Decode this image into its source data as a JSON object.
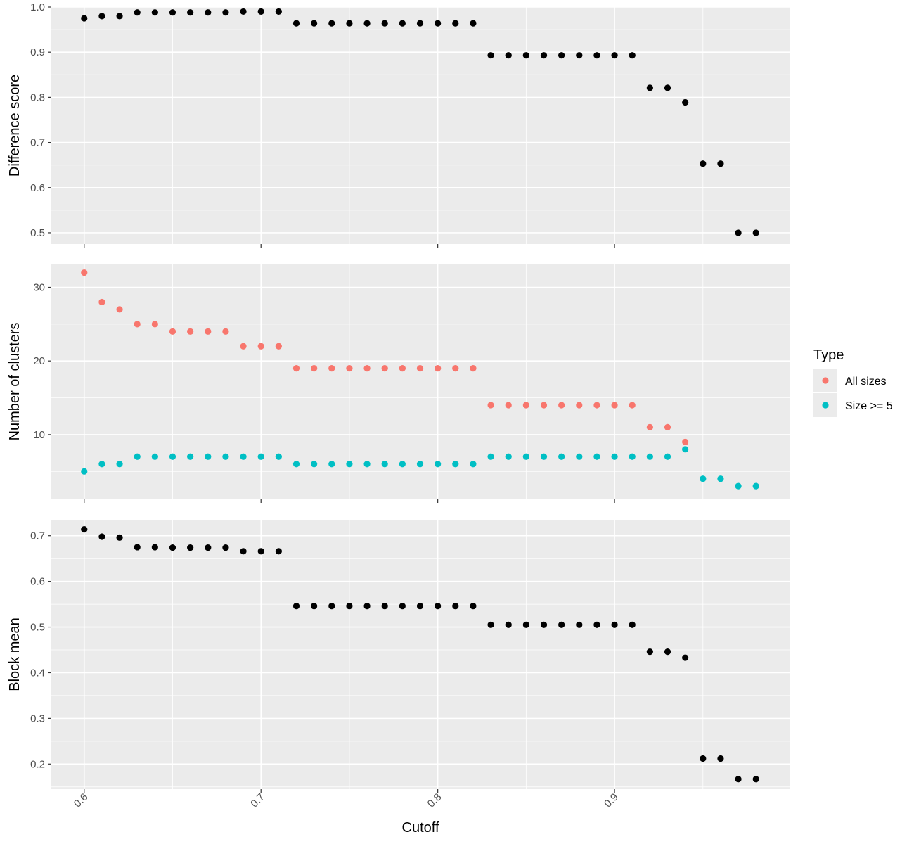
{
  "chart_data": [
    {
      "type": "scatter",
      "ylabel": "Difference score",
      "ylim": [
        0.475,
        1.0
      ],
      "y_ticks": [
        0.5,
        0.6,
        0.7,
        0.8,
        0.9,
        1.0
      ],
      "y_tick_labels": [
        "0.5",
        "0.6",
        "0.7",
        "0.8",
        "0.9",
        "1.0"
      ],
      "series": [
        {
          "color": "#000000",
          "x": [
            0.6,
            0.61,
            0.62,
            0.63,
            0.64,
            0.65,
            0.66,
            0.67,
            0.68,
            0.69,
            0.7,
            0.71,
            0.72,
            0.73,
            0.74,
            0.75,
            0.76,
            0.77,
            0.78,
            0.79,
            0.8,
            0.81,
            0.82,
            0.83,
            0.84,
            0.85,
            0.86,
            0.87,
            0.88,
            0.89,
            0.9,
            0.91,
            0.92,
            0.93,
            0.94,
            0.95,
            0.96,
            0.97,
            0.98
          ],
          "y": [
            0.975,
            0.98,
            0.98,
            0.988,
            0.988,
            0.988,
            0.988,
            0.988,
            0.988,
            0.99,
            0.99,
            0.99,
            0.964,
            0.964,
            0.964,
            0.964,
            0.964,
            0.964,
            0.964,
            0.964,
            0.964,
            0.964,
            0.964,
            0.893,
            0.893,
            0.893,
            0.893,
            0.893,
            0.893,
            0.893,
            0.893,
            0.893,
            0.821,
            0.821,
            0.789,
            0.653,
            0.653,
            0.5,
            0.5
          ]
        }
      ]
    },
    {
      "type": "scatter",
      "ylabel": "Number of clusters",
      "ylim": [
        1.2,
        33.2
      ],
      "y_ticks": [
        10,
        20,
        30
      ],
      "y_tick_labels": [
        "10",
        "20",
        "30"
      ],
      "series": [
        {
          "name": "All sizes",
          "color": "#F8766D",
          "x": [
            0.6,
            0.61,
            0.62,
            0.63,
            0.64,
            0.65,
            0.66,
            0.67,
            0.68,
            0.69,
            0.7,
            0.71,
            0.72,
            0.73,
            0.74,
            0.75,
            0.76,
            0.77,
            0.78,
            0.79,
            0.8,
            0.81,
            0.82,
            0.83,
            0.84,
            0.85,
            0.86,
            0.87,
            0.88,
            0.89,
            0.9,
            0.91,
            0.92,
            0.93,
            0.94
          ],
          "y": [
            32,
            28,
            27,
            25,
            25,
            24,
            24,
            24,
            24,
            22,
            22,
            22,
            19,
            19,
            19,
            19,
            19,
            19,
            19,
            19,
            19,
            19,
            19,
            14,
            14,
            14,
            14,
            14,
            14,
            14,
            14,
            14,
            11,
            11,
            9
          ]
        },
        {
          "name": "Size >= 5",
          "color": "#00BFC4",
          "x": [
            0.6,
            0.61,
            0.62,
            0.63,
            0.64,
            0.65,
            0.66,
            0.67,
            0.68,
            0.69,
            0.7,
            0.71,
            0.72,
            0.73,
            0.74,
            0.75,
            0.76,
            0.77,
            0.78,
            0.79,
            0.8,
            0.81,
            0.82,
            0.83,
            0.84,
            0.85,
            0.86,
            0.87,
            0.88,
            0.89,
            0.9,
            0.91,
            0.92,
            0.93,
            0.94,
            0.95,
            0.96,
            0.97,
            0.98
          ],
          "y": [
            5,
            6,
            6,
            7,
            7,
            7,
            7,
            7,
            7,
            7,
            7,
            7,
            6,
            6,
            6,
            6,
            6,
            6,
            6,
            6,
            6,
            6,
            6,
            7,
            7,
            7,
            7,
            7,
            7,
            7,
            7,
            7,
            7,
            7,
            8,
            4,
            4,
            3,
            3
          ]
        }
      ]
    },
    {
      "type": "scatter",
      "ylabel": "Block mean",
      "ylim": [
        0.145,
        0.735
      ],
      "y_ticks": [
        0.2,
        0.3,
        0.4,
        0.5,
        0.6,
        0.7
      ],
      "y_tick_labels": [
        "0.2",
        "0.3",
        "0.4",
        "0.5",
        "0.6",
        "0.7"
      ],
      "series": [
        {
          "color": "#000000",
          "x": [
            0.6,
            0.61,
            0.62,
            0.63,
            0.64,
            0.65,
            0.66,
            0.67,
            0.68,
            0.69,
            0.7,
            0.71,
            0.72,
            0.73,
            0.74,
            0.75,
            0.76,
            0.77,
            0.78,
            0.79,
            0.8,
            0.81,
            0.82,
            0.83,
            0.84,
            0.85,
            0.86,
            0.87,
            0.88,
            0.89,
            0.9,
            0.91,
            0.92,
            0.93,
            0.94,
            0.95,
            0.96,
            0.97,
            0.98
          ],
          "y": [
            0.714,
            0.698,
            0.696,
            0.675,
            0.675,
            0.674,
            0.674,
            0.674,
            0.674,
            0.666,
            0.666,
            0.666,
            0.546,
            0.546,
            0.546,
            0.546,
            0.546,
            0.546,
            0.546,
            0.546,
            0.546,
            0.546,
            0.546,
            0.505,
            0.505,
            0.505,
            0.505,
            0.505,
            0.505,
            0.505,
            0.505,
            0.505,
            0.446,
            0.446,
            0.433,
            0.212,
            0.212,
            0.167,
            0.167
          ]
        }
      ]
    }
  ],
  "shared_x": {
    "label": "Cutoff",
    "xlim": [
      0.581,
      0.999
    ],
    "ticks": [
      0.6,
      0.7,
      0.8,
      0.9
    ],
    "tick_labels": [
      "0.6",
      "0.7",
      "0.8",
      "0.9"
    ]
  },
  "legend": {
    "title": "Type",
    "position": "right",
    "entries": [
      {
        "label": "All sizes",
        "color": "#F8766D"
      },
      {
        "label": "Size >= 5",
        "color": "#00BFC4"
      }
    ]
  }
}
